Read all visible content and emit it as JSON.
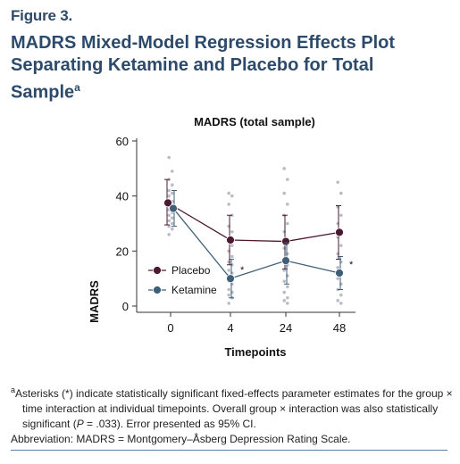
{
  "figure_label": "Figure 3.",
  "title": "MADRS Mixed-Model Regression Effects Plot Separating Ketamine and Placebo for Total Sample",
  "title_superscript": "a",
  "colors": {
    "heading": "#2d4a6b",
    "placebo": "#4a1a32",
    "ketamine": "#3f5f78",
    "raw_points": "#b9bcc4"
  },
  "chart_data": {
    "type": "line",
    "title": "MADRS (total sample)",
    "xlabel": "Timepoints",
    "ylabel": "MADRS",
    "categories": [
      "0",
      "4",
      "24",
      "48"
    ],
    "yticks": [
      "0",
      "20",
      "40",
      "60"
    ],
    "ylim": [
      0,
      60
    ],
    "series": [
      {
        "name": "Placebo",
        "values": [
          37.5,
          24,
          23.5,
          26.8
        ],
        "ci_low": [
          29.5,
          15,
          13.5,
          17
        ],
        "ci_high": [
          46,
          33,
          33,
          36.5
        ],
        "marker_fill": "#4a1a32"
      },
      {
        "name": "Ketamine",
        "values": [
          35.5,
          10,
          16.5,
          12
        ],
        "ci_low": [
          29,
          3,
          8,
          6
        ],
        "ci_high": [
          42,
          17,
          23,
          18
        ],
        "marker_fill": "#3f5f78"
      }
    ],
    "significance_markers": [
      {
        "category": "4",
        "label": "*"
      },
      {
        "category": "48",
        "label": "*"
      }
    ],
    "raw_points": [
      {
        "category": "0",
        "values": [
          54,
          49,
          46,
          44,
          42,
          41,
          40,
          38,
          37,
          36,
          35,
          34,
          33,
          32,
          31,
          30,
          29,
          28,
          26
        ]
      },
      {
        "category": "4",
        "values": [
          41,
          40,
          37,
          33,
          29,
          27,
          24,
          22,
          20,
          18,
          16,
          15,
          13,
          12,
          11,
          10,
          9,
          8,
          6,
          5,
          4,
          3,
          1
        ]
      },
      {
        "category": "24",
        "values": [
          50,
          46,
          41,
          37,
          33,
          30,
          27,
          24,
          21,
          19,
          17,
          15,
          13,
          11,
          9,
          7,
          5,
          3,
          2,
          1
        ]
      },
      {
        "category": "48",
        "values": [
          45,
          41,
          36,
          33,
          30,
          27,
          25,
          22,
          19,
          16,
          14,
          12,
          10,
          8,
          6,
          4,
          2,
          1
        ]
      }
    ],
    "legend_position": "lower-left"
  },
  "footnote": {
    "marker": "a",
    "line1": "Asterisks (*) indicate statistically significant fixed-effects parameter estimates for the group × time interaction at individual timepoints. Overall group × interaction was also statistically significant (",
    "p_symbol": "P",
    "line1_end": " = .033). Error presented as 95% CI.",
    "abbreviation": "Abbreviation: MADRS = Montgomery–Åsberg Depression Rating Scale."
  }
}
